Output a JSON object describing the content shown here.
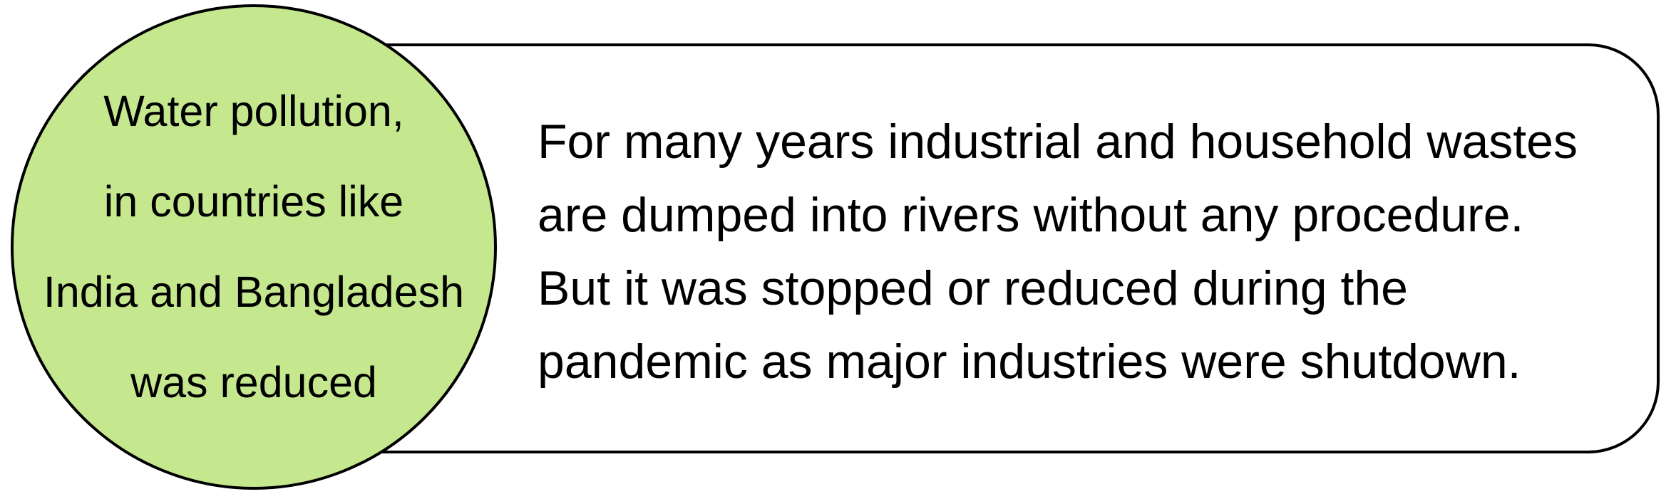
{
  "colors": {
    "circle_fill": "#c5e88f",
    "outline": "#000000",
    "box_fill": "#ffffff",
    "text": "#000000"
  },
  "circle": {
    "lines": [
      "Water pollution,",
      "in countries like",
      "India and Bangladesh",
      "was reduced"
    ]
  },
  "callout": {
    "lines": [
      "For many years industrial and household wastes",
      "are dumped into rivers without any procedure.",
      "But it was stopped or reduced during the",
      "pandemic as major industries were shutdown."
    ]
  }
}
